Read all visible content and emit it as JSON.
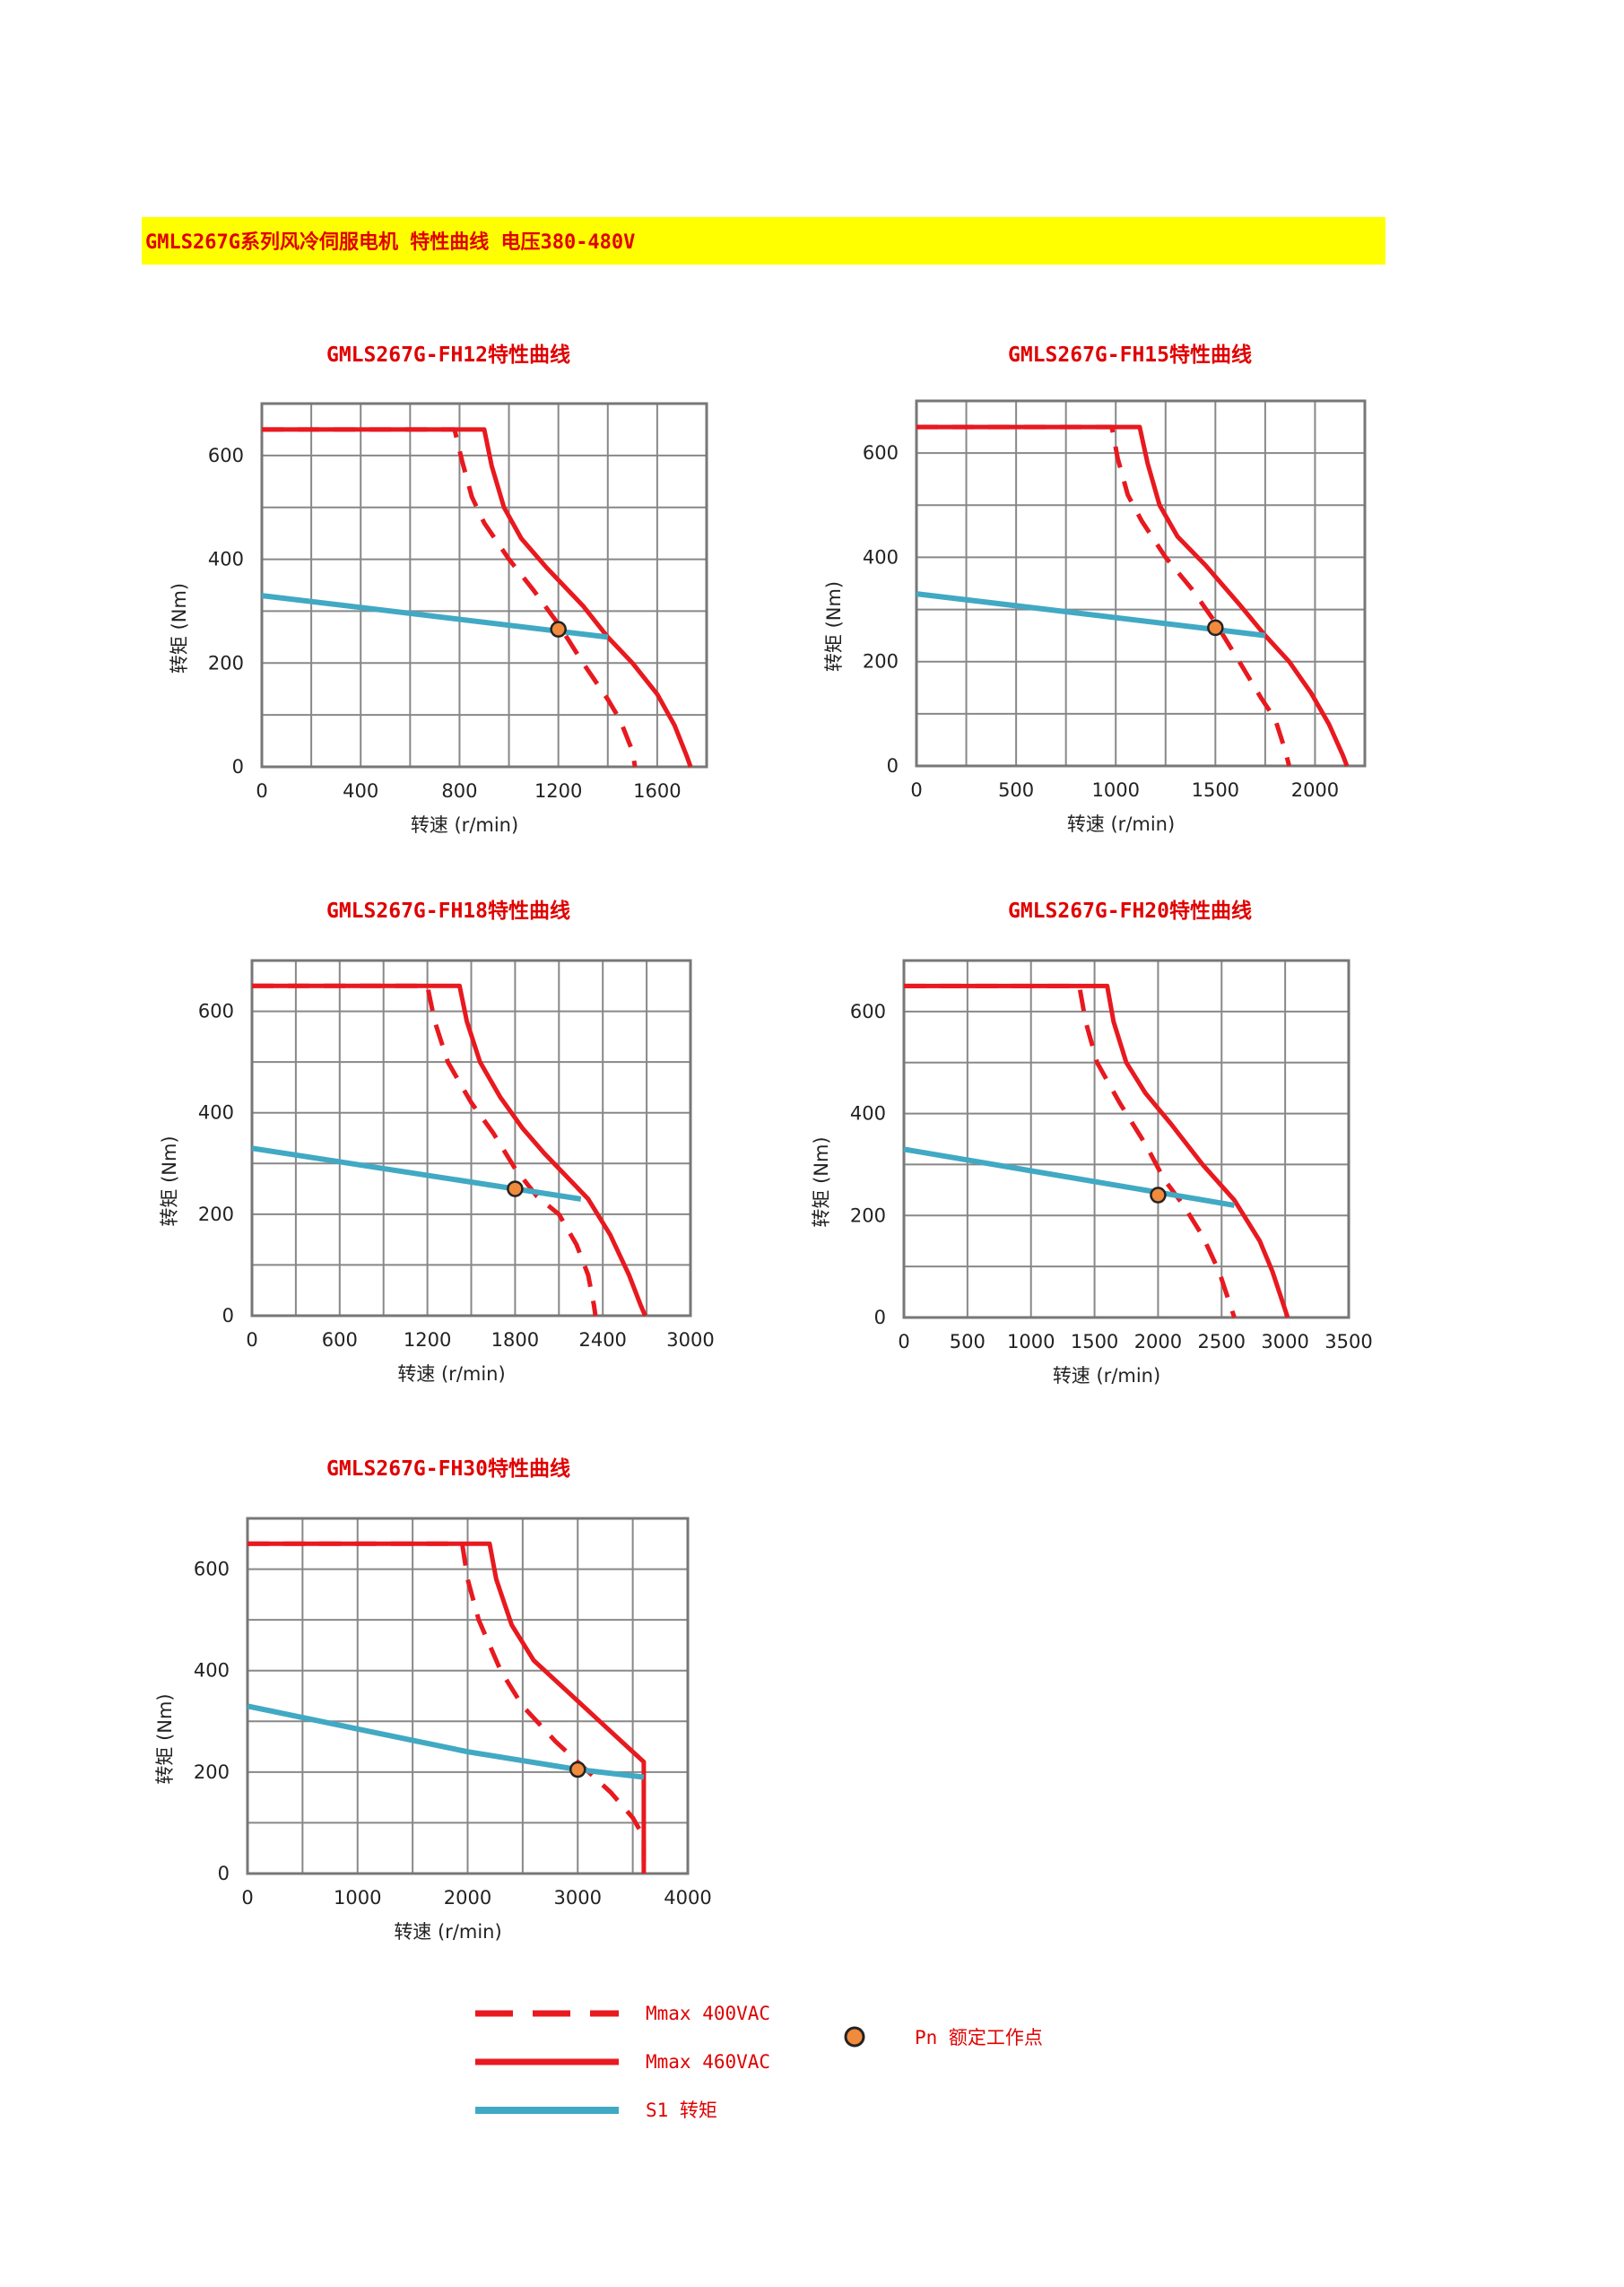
{
  "header": {
    "title": "GMLS267G系列风冷伺服电机 特性曲线 电压380-480V",
    "banner_color": "#ffff00",
    "title_color": "#e00000"
  },
  "colors": {
    "mmax": "#e8191f",
    "s1": "#41a9c4",
    "point_fill": "#f08a3c",
    "grid": "#888888"
  },
  "chart_data": [
    {
      "type": "line",
      "title": "GMLS267G-FH12特性曲线",
      "xlabel": "转速 (r/min)",
      "ylabel": "转矩 (Nm)",
      "xlim": [
        0,
        1800
      ],
      "ylim": [
        0,
        700
      ],
      "xticks": [
        0,
        400,
        800,
        1200,
        1600
      ],
      "xtick_labels": [
        "0",
        "400",
        "800",
        "1200",
        "1600"
      ],
      "x_grid_step": 200,
      "yticks": [
        0,
        200,
        400,
        600
      ],
      "y_grid_step": 100,
      "series": [
        {
          "name": "Mmax 400VAC",
          "style": "dashed",
          "points": [
            [
              0,
              650
            ],
            [
              780,
              650
            ],
            [
              810,
              590
            ],
            [
              850,
              520
            ],
            [
              900,
              470
            ],
            [
              1000,
              400
            ],
            [
              1100,
              340
            ],
            [
              1200,
              275
            ],
            [
              1300,
              200
            ],
            [
              1400,
              130
            ],
            [
              1450,
              90
            ],
            [
              1500,
              30
            ],
            [
              1510,
              0
            ]
          ]
        },
        {
          "name": "Mmax 460VAC",
          "style": "solid",
          "points": [
            [
              0,
              650
            ],
            [
              900,
              650
            ],
            [
              930,
              580
            ],
            [
              980,
              500
            ],
            [
              1050,
              440
            ],
            [
              1150,
              385
            ],
            [
              1300,
              310
            ],
            [
              1400,
              250
            ],
            [
              1500,
              200
            ],
            [
              1600,
              140
            ],
            [
              1670,
              80
            ],
            [
              1720,
              20
            ],
            [
              1735,
              0
            ]
          ]
        },
        {
          "name": "S1 转矩",
          "style": "solid",
          "points": [
            [
              0,
              330
            ],
            [
              1400,
              250
            ]
          ]
        }
      ],
      "rated_point": {
        "x": 1200,
        "y": 265
      }
    },
    {
      "type": "line",
      "title": "GMLS267G-FH15特性曲线",
      "xlabel": "转速 (r/min)",
      "ylabel": "转矩 (Nm)",
      "xlim": [
        0,
        2250
      ],
      "ylim": [
        0,
        700
      ],
      "xticks": [
        0,
        500,
        1000,
        1500,
        2000
      ],
      "xtick_labels": [
        "0",
        "500",
        "1000",
        "1500",
        "2000"
      ],
      "x_grid_step": 250,
      "yticks": [
        0,
        200,
        400,
        600
      ],
      "y_grid_step": 100,
      "series": [
        {
          "name": "Mmax 400VAC",
          "style": "dashed",
          "points": [
            [
              0,
              650
            ],
            [
              980,
              650
            ],
            [
              1010,
              590
            ],
            [
              1060,
              520
            ],
            [
              1130,
              470
            ],
            [
              1250,
              400
            ],
            [
              1380,
              340
            ],
            [
              1500,
              275
            ],
            [
              1620,
              200
            ],
            [
              1730,
              130
            ],
            [
              1800,
              90
            ],
            [
              1850,
              30
            ],
            [
              1870,
              0
            ]
          ]
        },
        {
          "name": "Mmax 460VAC",
          "style": "solid",
          "points": [
            [
              0,
              650
            ],
            [
              1120,
              650
            ],
            [
              1160,
              580
            ],
            [
              1220,
              500
            ],
            [
              1310,
              440
            ],
            [
              1450,
              385
            ],
            [
              1620,
              310
            ],
            [
              1750,
              250
            ],
            [
              1870,
              200
            ],
            [
              1980,
              140
            ],
            [
              2070,
              80
            ],
            [
              2140,
              20
            ],
            [
              2160,
              0
            ]
          ]
        },
        {
          "name": "S1 转矩",
          "style": "solid",
          "points": [
            [
              0,
              330
            ],
            [
              1750,
              250
            ]
          ]
        }
      ],
      "rated_point": {
        "x": 1500,
        "y": 265
      }
    },
    {
      "type": "line",
      "title": "GMLS267G-FH18特性曲线",
      "xlabel": "转速 (r/min)",
      "ylabel": "转矩 (Nm)",
      "xlim": [
        0,
        3000
      ],
      "ylim": [
        0,
        700
      ],
      "xticks": [
        0,
        600,
        1200,
        1800,
        2400,
        3000
      ],
      "xtick_labels": [
        "0",
        "600",
        "1200",
        "1800",
        "2400",
        "3000"
      ],
      "x_grid_step": 300,
      "yticks": [
        0,
        200,
        400,
        600
      ],
      "y_grid_step": 100,
      "series": [
        {
          "name": "Mmax 400VAC",
          "style": "dashed",
          "points": [
            [
              0,
              650
            ],
            [
              1200,
              650
            ],
            [
              1250,
              580
            ],
            [
              1340,
              500
            ],
            [
              1500,
              420
            ],
            [
              1650,
              360
            ],
            [
              1800,
              290
            ],
            [
              1950,
              235
            ],
            [
              2100,
              200
            ],
            [
              2220,
              140
            ],
            [
              2300,
              80
            ],
            [
              2340,
              20
            ],
            [
              2350,
              0
            ]
          ]
        },
        {
          "name": "Mmax 460VAC",
          "style": "solid",
          "points": [
            [
              0,
              650
            ],
            [
              1420,
              650
            ],
            [
              1470,
              580
            ],
            [
              1560,
              500
            ],
            [
              1700,
              430
            ],
            [
              1850,
              370
            ],
            [
              2000,
              320
            ],
            [
              2200,
              260
            ],
            [
              2300,
              230
            ],
            [
              2450,
              160
            ],
            [
              2580,
              80
            ],
            [
              2660,
              20
            ],
            [
              2690,
              0
            ]
          ]
        },
        {
          "name": "S1 转矩",
          "style": "solid",
          "points": [
            [
              0,
              330
            ],
            [
              2250,
              230
            ]
          ]
        }
      ],
      "rated_point": {
        "x": 1800,
        "y": 250
      }
    },
    {
      "type": "line",
      "title": "GMLS267G-FH20特性曲线",
      "xlabel": "转速 (r/min)",
      "ylabel": "转矩 (Nm)",
      "xlim": [
        0,
        3500
      ],
      "ylim": [
        0,
        700
      ],
      "xticks": [
        0,
        500,
        1000,
        1500,
        2000,
        2500,
        3000,
        3500
      ],
      "xtick_labels": [
        "0",
        "500",
        "1000",
        "1500",
        "2000",
        "2500",
        "3000",
        "3500"
      ],
      "x_grid_step": 500,
      "yticks": [
        0,
        200,
        400,
        600
      ],
      "y_grid_step": 100,
      "series": [
        {
          "name": "Mmax 400VAC",
          "style": "dashed",
          "points": [
            [
              0,
              650
            ],
            [
              1380,
              650
            ],
            [
              1430,
              580
            ],
            [
              1520,
              500
            ],
            [
              1700,
              420
            ],
            [
              1900,
              340
            ],
            [
              2050,
              270
            ],
            [
              2200,
              220
            ],
            [
              2350,
              160
            ],
            [
              2480,
              90
            ],
            [
              2560,
              30
            ],
            [
              2600,
              0
            ]
          ]
        },
        {
          "name": "Mmax 460VAC",
          "style": "solid",
          "points": [
            [
              0,
              650
            ],
            [
              1600,
              650
            ],
            [
              1650,
              580
            ],
            [
              1750,
              500
            ],
            [
              1900,
              440
            ],
            [
              2100,
              380
            ],
            [
              2350,
              300
            ],
            [
              2600,
              230
            ],
            [
              2800,
              150
            ],
            [
              2900,
              90
            ],
            [
              2980,
              30
            ],
            [
              3020,
              0
            ]
          ]
        },
        {
          "name": "S1 转矩",
          "style": "solid",
          "points": [
            [
              0,
              330
            ],
            [
              2600,
              220
            ]
          ]
        }
      ],
      "rated_point": {
        "x": 2000,
        "y": 240
      }
    },
    {
      "type": "line",
      "title": "GMLS267G-FH30特性曲线",
      "xlabel": "转速 (r/min)",
      "ylabel": "转矩 (Nm)",
      "xlim": [
        0,
        4000
      ],
      "ylim": [
        0,
        700
      ],
      "xticks": [
        0,
        1000,
        2000,
        3000,
        4000
      ],
      "xtick_labels": [
        "0",
        "1000",
        "2000",
        "3000",
        "4000"
      ],
      "x_grid_step": 500,
      "yticks": [
        0,
        200,
        400,
        600
      ],
      "y_grid_step": 100,
      "series": [
        {
          "name": "Mmax 400VAC",
          "style": "dashed",
          "points": [
            [
              0,
              650
            ],
            [
              1950,
              650
            ],
            [
              2000,
              580
            ],
            [
              2100,
              500
            ],
            [
              2300,
              400
            ],
            [
              2500,
              330
            ],
            [
              2800,
              260
            ],
            [
              3100,
              200
            ],
            [
              3300,
              160
            ],
            [
              3500,
              110
            ],
            [
              3580,
              80
            ],
            [
              3600,
              80
            ],
            [
              3600,
              0
            ]
          ]
        },
        {
          "name": "Mmax 460VAC",
          "style": "solid",
          "points": [
            [
              0,
              650
            ],
            [
              2200,
              650
            ],
            [
              2260,
              580
            ],
            [
              2400,
              490
            ],
            [
              2600,
              420
            ],
            [
              2900,
              360
            ],
            [
              3200,
              300
            ],
            [
              3450,
              250
            ],
            [
              3600,
              220
            ],
            [
              3600,
              0
            ]
          ]
        },
        {
          "name": "S1 转矩",
          "style": "solid",
          "points": [
            [
              0,
              330
            ],
            [
              1000,
              285
            ],
            [
              2000,
              240
            ],
            [
              3000,
              205
            ],
            [
              3600,
              190
            ]
          ]
        }
      ],
      "rated_point": {
        "x": 3000,
        "y": 205
      }
    }
  ],
  "legend": {
    "mmax_400": "Mmax 400VAC",
    "mmax_460": "Mmax 460VAC",
    "s1": "S1 转矩",
    "pn": "Pn 额定工作点"
  }
}
